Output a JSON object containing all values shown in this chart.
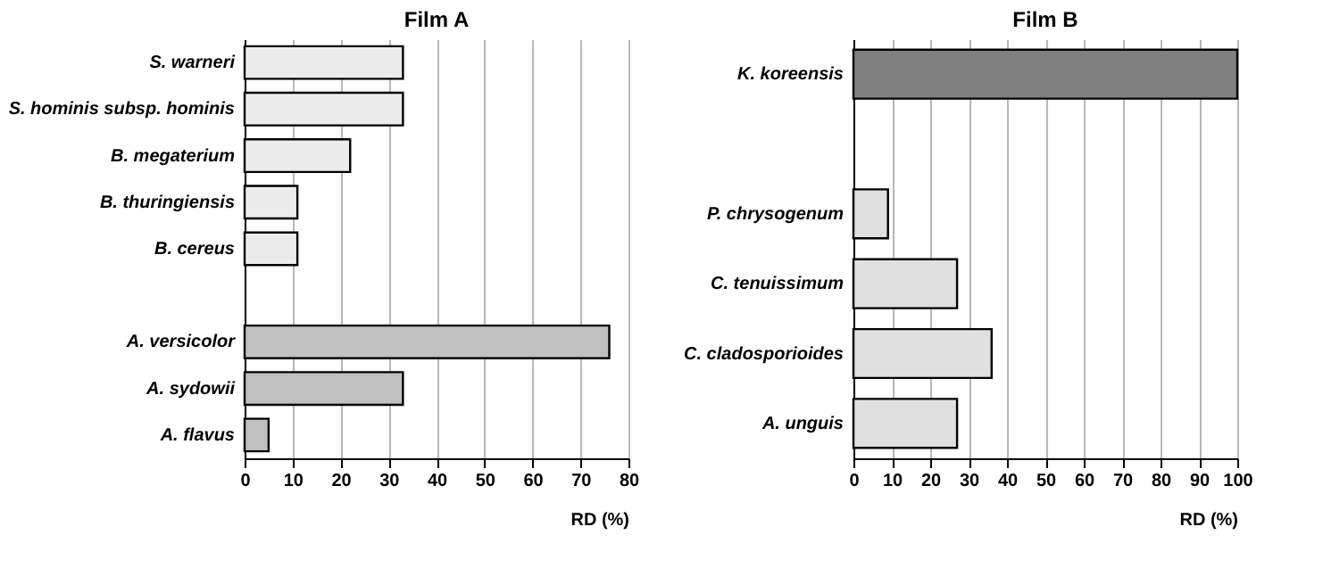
{
  "chart_data": [
    {
      "type": "bar",
      "orientation": "horizontal",
      "title": "Film A",
      "xlabel": "RD (%)",
      "categories": [
        "S. warneri",
        "S. hominis subsp. hominis",
        "B. megaterium",
        "B. thuringiensis",
        "B. cereus",
        null,
        "A. versicolor",
        "A. sydowii",
        "A. flavus"
      ],
      "values": [
        33,
        33,
        22,
        11,
        11,
        null,
        76,
        33,
        5
      ],
      "colors": [
        "#ececec",
        "#ececec",
        "#ececec",
        "#ececec",
        "#ececec",
        "#ececec",
        "#c0c0c0",
        "#c0c0c0",
        "#c0c0c0"
      ],
      "xlim": [
        0,
        80
      ],
      "xticks": [
        0,
        10,
        20,
        30,
        40,
        50,
        60,
        70,
        80
      ],
      "grid": "x"
    },
    {
      "type": "bar",
      "orientation": "horizontal",
      "title": "Film B",
      "xlabel": "RD (%)",
      "categories": [
        "K. koreensis",
        null,
        "P. chrysogenum",
        "C. tenuissimum",
        "C. cladosporioides",
        "A. unguis"
      ],
      "values": [
        100,
        null,
        9,
        27,
        36,
        27
      ],
      "colors": [
        "#808080",
        "#e0e0e0",
        "#e0e0e0",
        "#e0e0e0",
        "#e0e0e0",
        "#e0e0e0"
      ],
      "xlim": [
        0,
        100
      ],
      "xticks": [
        0,
        10,
        20,
        30,
        40,
        50,
        60,
        70,
        80,
        90,
        100
      ],
      "grid": "x"
    }
  ]
}
